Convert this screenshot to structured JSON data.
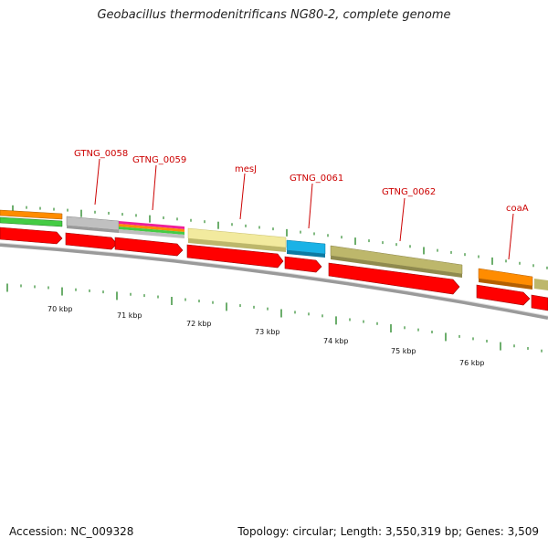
{
  "title": "Geobacillus thermodenitrificans NG80-2, complete genome",
  "footer": {
    "accession": "Accession: NC_009328",
    "summary": "Topology: circular; Length: 3,550,319 bp; Genes: 3,509"
  },
  "gene_labels": [
    {
      "name": "GTNG_0058"
    },
    {
      "name": "GTNG_0059"
    },
    {
      "name": "mesJ"
    },
    {
      "name": "GTNG_0061"
    },
    {
      "name": "GTNG_0062"
    },
    {
      "name": "coaA"
    }
  ],
  "kbp_labels": [
    "70 kbp",
    "71 kbp",
    "72 kbp",
    "73 kbp",
    "74 kbp",
    "75 kbp",
    "76 kbp"
  ],
  "colors": {
    "label_red": "#cc0000",
    "arrow_red": "#ff0000",
    "tick_green": "#2e8b2e",
    "backbone_gray": "#888888",
    "orange": "#ff8c00",
    "light_gray": "#bfbfbf",
    "pale_yellow": "#f0e68c",
    "cyan": "#1ab2e6",
    "khaki": "#bdb76b"
  }
}
